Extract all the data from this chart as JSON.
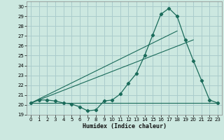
{
  "xlabel": "Humidex (Indice chaleur)",
  "background_color": "#cce8e0",
  "grid_color": "#aacccc",
  "line_color": "#1a6b5a",
  "xlim": [
    -0.5,
    23.5
  ],
  "ylim": [
    19.0,
    30.5
  ],
  "xticks": [
    0,
    1,
    2,
    3,
    4,
    5,
    6,
    7,
    8,
    9,
    10,
    11,
    12,
    13,
    14,
    15,
    16,
    17,
    18,
    19,
    20,
    21,
    22,
    23
  ],
  "yticks": [
    19,
    20,
    21,
    22,
    23,
    24,
    25,
    26,
    27,
    28,
    29,
    30
  ],
  "series1_x": [
    0,
    1,
    2,
    3,
    4,
    5,
    6,
    7,
    8,
    9,
    10,
    11,
    12,
    13,
    14,
    15,
    16,
    17,
    18,
    19,
    20,
    21,
    22,
    23
  ],
  "series1_y": [
    20.2,
    20.5,
    20.5,
    20.4,
    20.2,
    20.1,
    19.8,
    19.4,
    19.5,
    20.4,
    20.5,
    21.1,
    22.2,
    23.2,
    25.0,
    27.1,
    29.2,
    29.8,
    29.0,
    26.6,
    24.5,
    22.5,
    20.5,
    20.2
  ],
  "series2_x": [
    0,
    23
  ],
  "series2_y": [
    20.2,
    20.2
  ],
  "series3_x": [
    0,
    20
  ],
  "series3_y": [
    20.2,
    26.6
  ],
  "series4_x": [
    0,
    18
  ],
  "series4_y": [
    20.2,
    27.5
  ]
}
